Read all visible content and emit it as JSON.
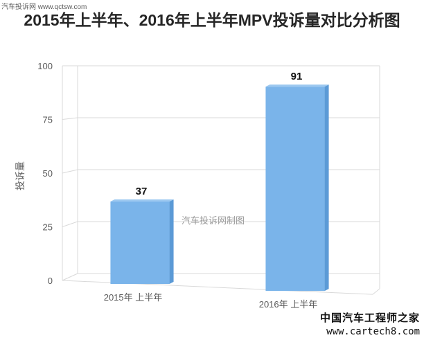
{
  "watermark_top": "汽车投诉网  www.qctsw.com",
  "watermark_center": "汽车投诉网制图",
  "watermark_logo": "中国汽车工程师之家",
  "watermark_url": "www.cartech8.com",
  "colors": {
    "bar_front": "#7ab4ea",
    "bar_side": "#5b9ad6",
    "bar_top": "#9cc8f0",
    "grid": "#d9d9d9",
    "axis_text": "#595959"
  },
  "chart_data": {
    "type": "bar",
    "title": "2015年上半年、2016年上半年MPV投诉量对比分析图",
    "ylabel": "投诉量",
    "xlabel": "",
    "categories": [
      "2015年 上半年",
      "2016年 上半年"
    ],
    "values": [
      37,
      91
    ],
    "ylim": [
      0,
      100
    ],
    "yticks": [
      0,
      25,
      50,
      75,
      100
    ],
    "grid": true,
    "legend": "none",
    "style": "3d"
  }
}
